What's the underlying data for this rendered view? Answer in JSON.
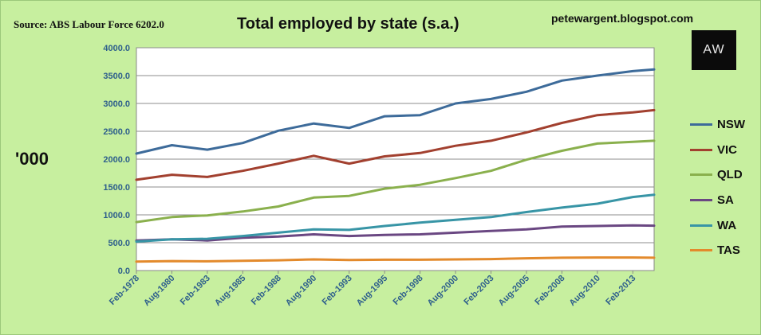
{
  "header": {
    "source": "Source: ABS Labour Force 6202.0",
    "title": "Total employed by state (s.a.)",
    "blog": "petewargent.blogspot.com",
    "logo_text": "AW"
  },
  "chart_data": {
    "type": "line",
    "title": "Total employed by state (s.a.)",
    "ylabel": "'000",
    "xlabel": "",
    "ylim": [
      0,
      4000
    ],
    "yticks": [
      0,
      500,
      1000,
      1500,
      2000,
      2500,
      3000,
      3500,
      4000
    ],
    "ytick_labels": [
      "0.0",
      "500.0",
      "1000.0",
      "1500.0",
      "2000.0",
      "2500.0",
      "3000.0",
      "3500.0",
      "4000.0"
    ],
    "xlim": [
      "1978-02",
      "2014-08"
    ],
    "xtick_labels": [
      "Feb-1978",
      "Aug-1980",
      "Feb-1983",
      "Aug-1985",
      "Feb-1988",
      "Aug-1990",
      "Feb-1993",
      "Aug-1995",
      "Feb-1998",
      "Aug-2000",
      "Feb-2003",
      "Aug-2005",
      "Feb-2008",
      "Aug-2010",
      "Feb-2013"
    ],
    "x": [
      "1978-02",
      "1980-08",
      "1983-02",
      "1985-08",
      "1988-02",
      "1990-08",
      "1993-02",
      "1995-08",
      "1998-02",
      "2000-08",
      "2003-02",
      "2005-08",
      "2008-02",
      "2010-08",
      "2013-02",
      "2014-08"
    ],
    "grid": "horizontal",
    "legend_position": "right",
    "series": [
      {
        "name": "NSW",
        "color": "#3d6b9a",
        "values": [
          2100,
          2250,
          2170,
          2290,
          2510,
          2640,
          2560,
          2770,
          2790,
          3000,
          3080,
          3210,
          3410,
          3500,
          3580,
          3610
        ]
      },
      {
        "name": "VIC",
        "color": "#a2402f",
        "values": [
          1630,
          1720,
          1680,
          1790,
          1920,
          2060,
          1920,
          2050,
          2110,
          2240,
          2330,
          2480,
          2650,
          2790,
          2840,
          2880
        ]
      },
      {
        "name": "QLD",
        "color": "#8ab04d",
        "values": [
          870,
          960,
          990,
          1060,
          1150,
          1310,
          1340,
          1470,
          1540,
          1660,
          1790,
          1990,
          2150,
          2280,
          2310,
          2330
        ]
      },
      {
        "name": "SA",
        "color": "#6a4782",
        "values": [
          540,
          560,
          540,
          590,
          610,
          650,
          620,
          640,
          650,
          680,
          710,
          740,
          790,
          800,
          810,
          805
        ]
      },
      {
        "name": "WA",
        "color": "#3895a6",
        "values": [
          520,
          560,
          570,
          620,
          680,
          740,
          730,
          800,
          860,
          910,
          960,
          1050,
          1130,
          1200,
          1320,
          1360
        ]
      },
      {
        "name": "TAS",
        "color": "#e38a2c",
        "values": [
          160,
          170,
          165,
          175,
          185,
          200,
          190,
          195,
          195,
          200,
          205,
          220,
          230,
          235,
          235,
          230
        ]
      }
    ]
  }
}
